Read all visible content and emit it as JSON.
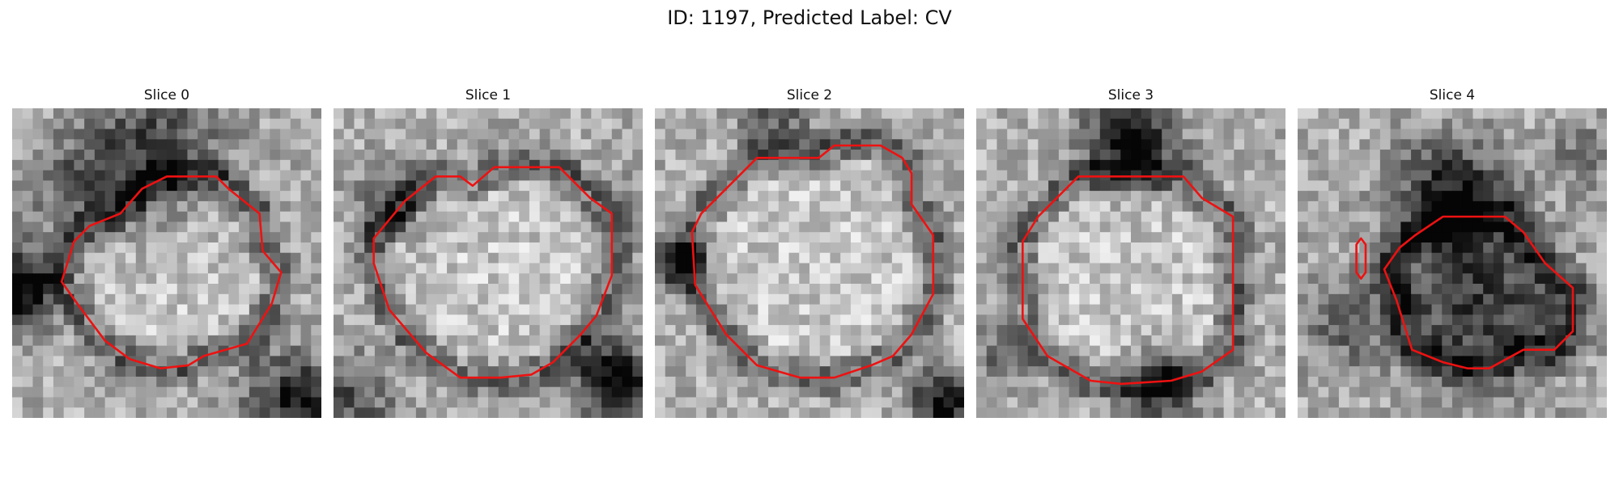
{
  "figure": {
    "title": "ID: 1197, Predicted Label: CV"
  },
  "contour_color": "#ee1111",
  "slices": [
    {
      "label": "Slice 0"
    },
    {
      "label": "Slice 1"
    },
    {
      "label": "Slice 2"
    },
    {
      "label": "Slice 3"
    },
    {
      "label": "Slice 4"
    }
  ]
}
